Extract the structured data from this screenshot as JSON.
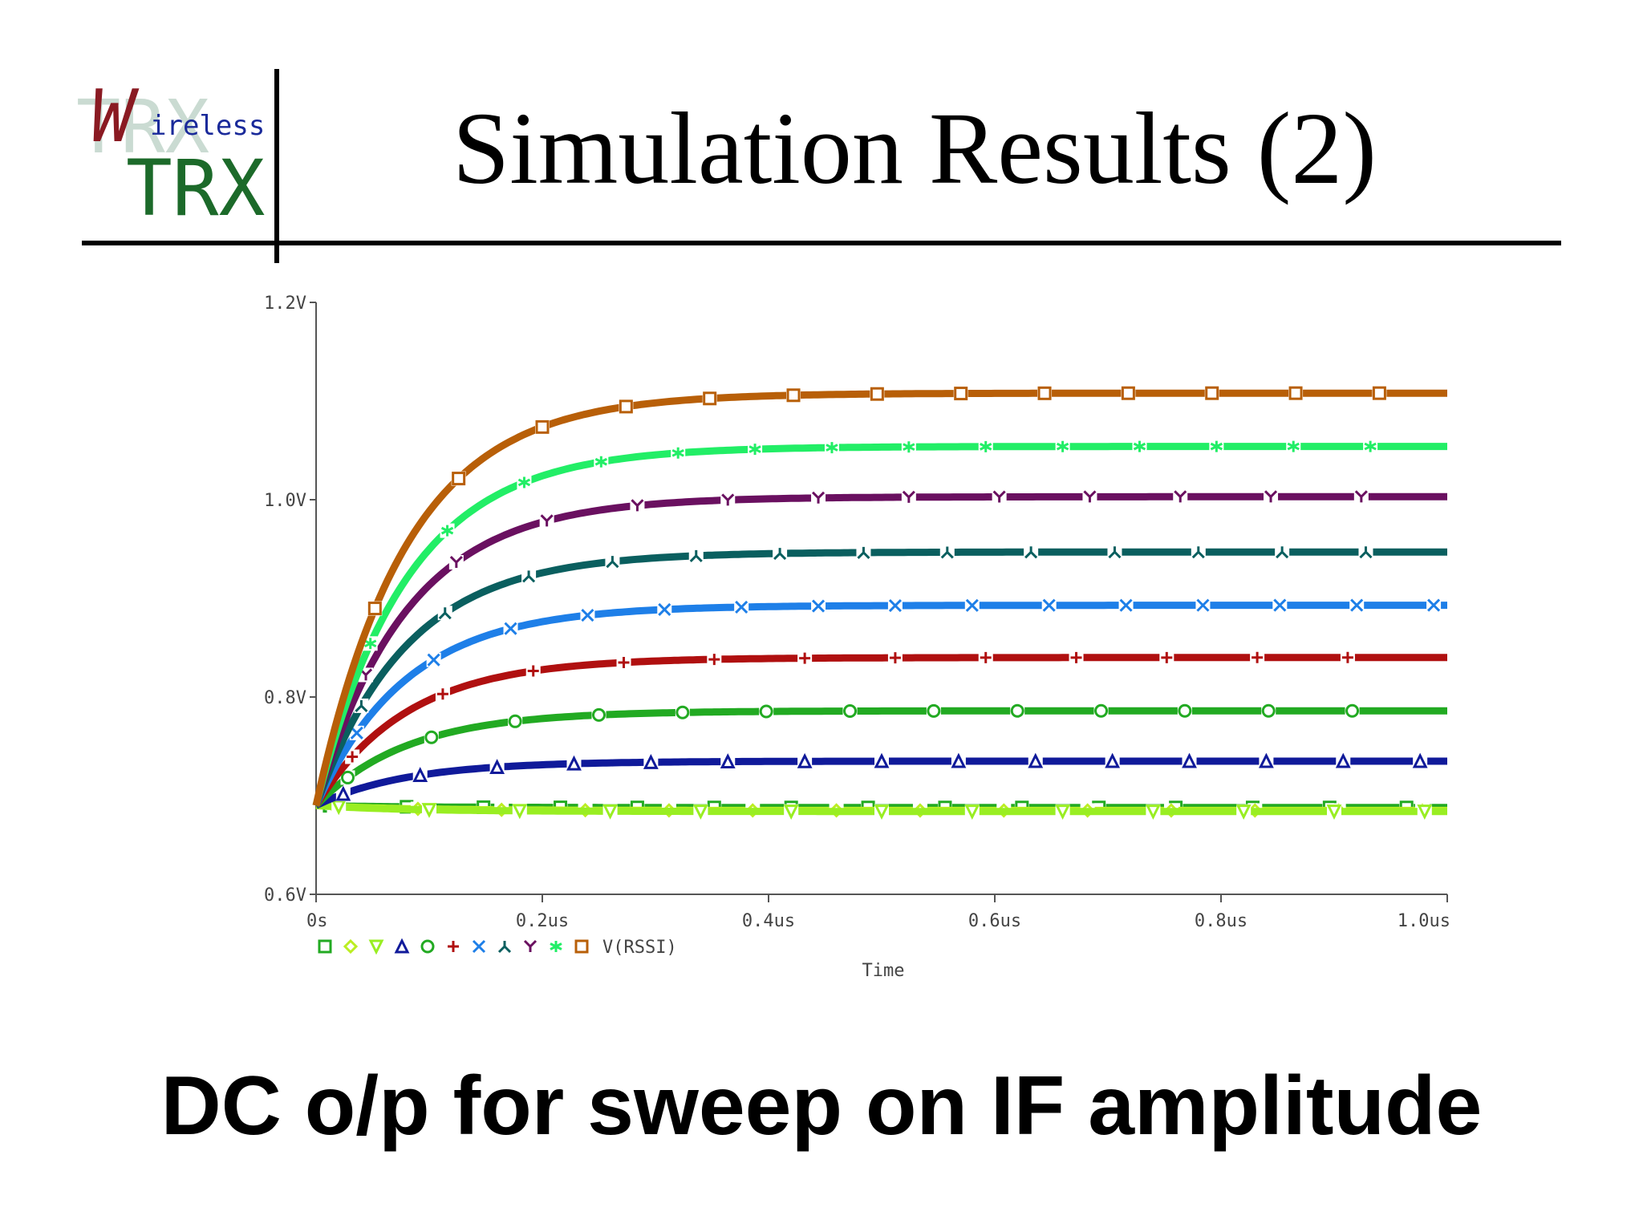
{
  "logo": {
    "initial": "W",
    "word": "ireless",
    "brand": "TRX",
    "watermark": "TRX"
  },
  "slide": {
    "title": "Simulation Results (2)",
    "caption": "DC o/p for sweep on IF amplitude"
  },
  "chart_data": {
    "type": "line",
    "xlabel": "Time",
    "ylabel": "",
    "xlim": [
      0,
      1.0
    ],
    "ylim": [
      0.6,
      1.2
    ],
    "x_unit": "us",
    "x_ticks": [
      {
        "value": 0,
        "label": "0s"
      },
      {
        "value": 0.2,
        "label": "0.2us"
      },
      {
        "value": 0.4,
        "label": "0.4us"
      },
      {
        "value": 0.6,
        "label": "0.6us"
      },
      {
        "value": 0.8,
        "label": "0.8us"
      },
      {
        "value": 1.0,
        "label": "1.0us"
      }
    ],
    "y_ticks": [
      {
        "value": 0.6,
        "label": "0.6V"
      },
      {
        "value": 0.8,
        "label": "0.8V"
      },
      {
        "value": 1.0,
        "label": "1.0V"
      },
      {
        "value": 1.2,
        "label": "1.2V"
      }
    ],
    "grid": false,
    "legend": {
      "position": "bottom-left",
      "label": "V(RSSI)"
    },
    "start_value": 0.69,
    "time_constant_us": 0.08,
    "series": [
      {
        "marker": "square",
        "color": "#22aa22",
        "final": 0.688
      },
      {
        "marker": "diamond",
        "color": "#bbee22",
        "final": 0.685
      },
      {
        "marker": "triangle-down",
        "color": "#99ee22",
        "final": 0.684
      },
      {
        "marker": "triangle-up",
        "color": "#101a9a",
        "final": 0.735
      },
      {
        "marker": "circle",
        "color": "#22aa22",
        "final": 0.786
      },
      {
        "marker": "plus",
        "color": "#b01010",
        "final": 0.84
      },
      {
        "marker": "x",
        "color": "#1e7fe8",
        "final": 0.893
      },
      {
        "marker": "tri",
        "color": "#0a5f5f",
        "final": 0.947
      },
      {
        "marker": "y",
        "color": "#6a1060",
        "final": 1.003
      },
      {
        "marker": "asterisk",
        "color": "#22ee66",
        "final": 1.054
      },
      {
        "marker": "square",
        "color": "#b85f08",
        "final": 1.108
      }
    ]
  }
}
